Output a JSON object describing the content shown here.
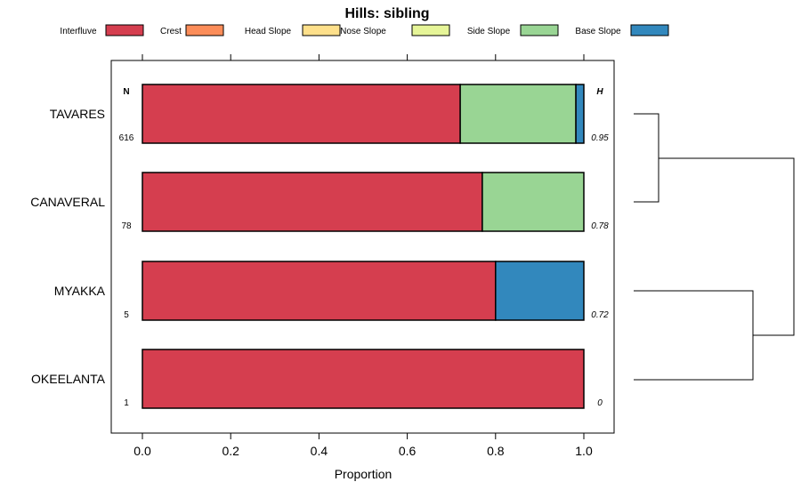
{
  "chart_data": {
    "type": "bar",
    "orientation": "horizontal-stacked",
    "title": "Hills: sibling",
    "xlabel": "Proportion",
    "ylabel": "",
    "xlim": [
      0,
      1
    ],
    "xticks": [
      "0.0",
      "0.2",
      "0.4",
      "0.6",
      "0.8",
      "1.0"
    ],
    "xtick_values": [
      0,
      0.2,
      0.4,
      0.6,
      0.8,
      1.0
    ],
    "legend": {
      "placement": "top",
      "entries": [
        "Interfluve",
        "Crest",
        "Head Slope",
        "Nose Slope",
        "Side Slope",
        "Base Slope"
      ]
    },
    "colors": [
      "#D53E4F",
      "#FC8D59",
      "#FEE08B",
      "#E6F598",
      "#99D594",
      "#3288BD"
    ],
    "categories": [
      "TAVARES",
      "CANAVERAL",
      "MYAKKA",
      "OKEELANTA"
    ],
    "series": [
      {
        "name": "Interfluve",
        "values": [
          0.72,
          0.77,
          0.8,
          1.0
        ]
      },
      {
        "name": "Crest",
        "values": [
          0,
          0,
          0,
          0
        ]
      },
      {
        "name": "Head Slope",
        "values": [
          0,
          0,
          0,
          0
        ]
      },
      {
        "name": "Nose Slope",
        "values": [
          0,
          0,
          0,
          0
        ]
      },
      {
        "name": "Side Slope",
        "values": [
          0.262,
          0.23,
          0,
          0
        ]
      },
      {
        "name": "Base Slope",
        "values": [
          0.018,
          0,
          0.2,
          0
        ]
      }
    ],
    "n_header": "N",
    "h_header": "H",
    "n_values": [
      "616",
      "78",
      "5",
      "1"
    ],
    "h_values": [
      "0.95",
      "0.78",
      "0.72",
      "0"
    ],
    "dendrogram": {
      "merges": [
        [
          "TAVARES",
          "CANAVERAL"
        ],
        [
          "MYAKKA",
          "OKEELANTA"
        ],
        [
          "group1",
          "group2"
        ]
      ]
    }
  }
}
